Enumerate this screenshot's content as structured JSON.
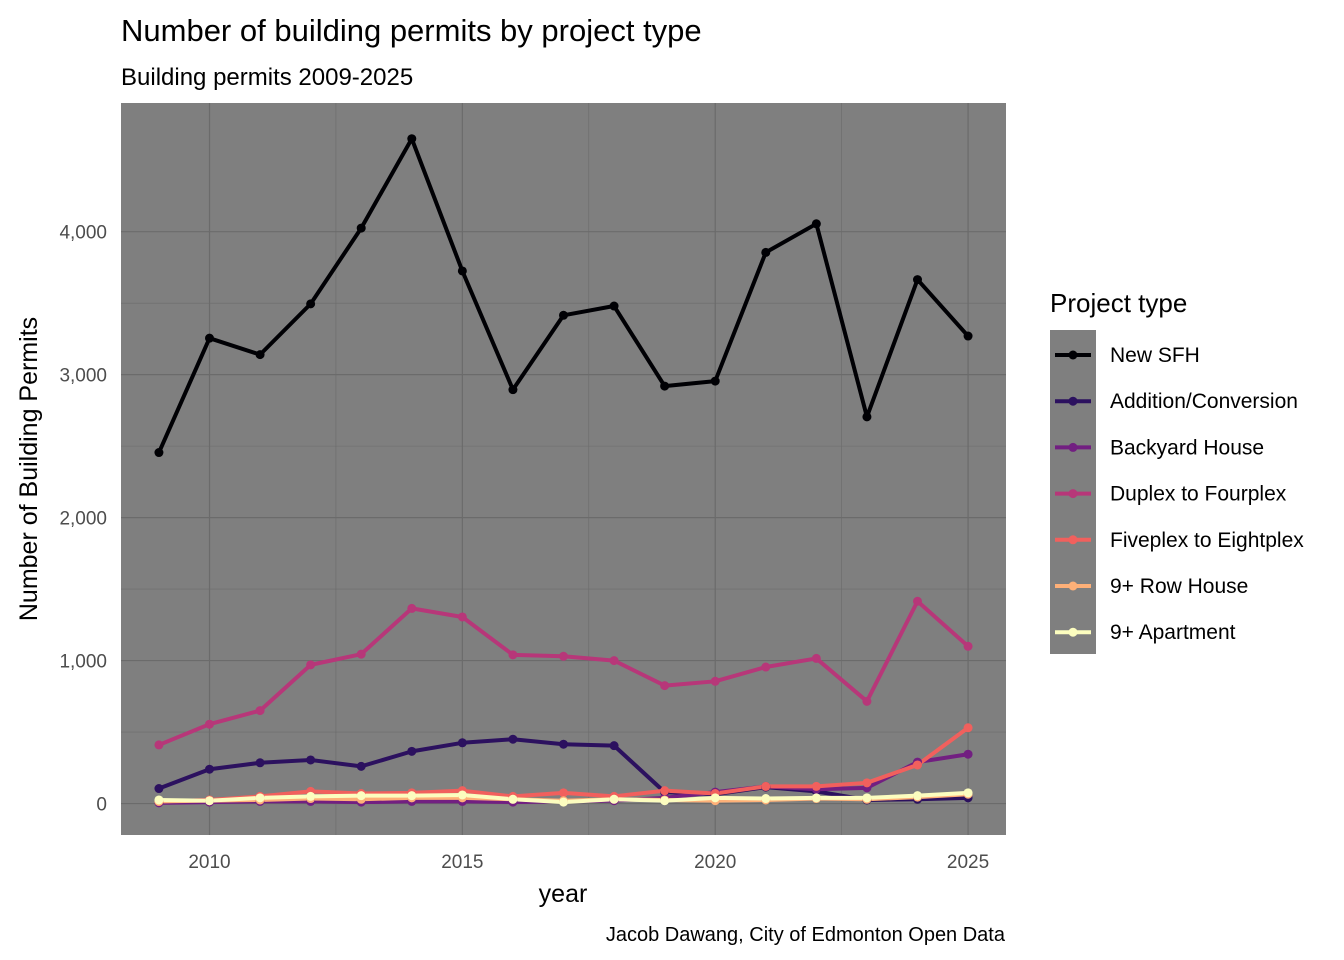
{
  "chart_data": {
    "type": "line",
    "title": "Number of building permits by project type",
    "subtitle": "Building permits 2009-2025",
    "xlabel": "year",
    "ylabel": "Number of Building Permits",
    "caption": "Jacob Dawang, City of Edmonton Open Data",
    "legend_title": "Project type",
    "legend_position": "right",
    "grid": true,
    "panel_background": "#7f7f7f",
    "xlim": [
      2008.25,
      2025.75
    ],
    "ylim": [
      -220,
      4900
    ],
    "x_ticks": [
      2010,
      2015,
      2020,
      2025
    ],
    "x_tick_labels": [
      "2010",
      "2015",
      "2020",
      "2025"
    ],
    "y_ticks": [
      0,
      1000,
      2000,
      3000,
      4000
    ],
    "y_tick_labels": [
      "0",
      "1,000",
      "2,000",
      "3,000",
      "4,000"
    ],
    "x": [
      2009,
      2010,
      2011,
      2012,
      2013,
      2014,
      2015,
      2016,
      2017,
      2018,
      2019,
      2020,
      2021,
      2022,
      2023,
      2024,
      2025
    ],
    "series": [
      {
        "name": "New SFH",
        "color": "#000004",
        "values": [
          2455,
          3255,
          3140,
          3495,
          4025,
          4650,
          3725,
          2895,
          3415,
          3480,
          2920,
          2955,
          3855,
          4055,
          2705,
          3665,
          3270
        ]
      },
      {
        "name": "Addition/Conversion",
        "color": "#2c115f",
        "values": [
          105,
          240,
          285,
          305,
          260,
          365,
          425,
          450,
          415,
          405,
          80,
          65,
          115,
          85,
          25,
          30,
          40
        ]
      },
      {
        "name": "Backyard House",
        "color": "#721f81",
        "values": [
          5,
          10,
          15,
          15,
          10,
          15,
          15,
          10,
          15,
          20,
          40,
          80,
          120,
          100,
          110,
          290,
          345
        ]
      },
      {
        "name": "Duplex to Fourplex",
        "color": "#b73779",
        "values": [
          410,
          555,
          650,
          970,
          1045,
          1365,
          1305,
          1040,
          1030,
          1000,
          825,
          855,
          955,
          1015,
          715,
          1415,
          1100
        ]
      },
      {
        "name": "Fiveplex to Eightplex",
        "color": "#f1605d",
        "values": [
          15,
          25,
          50,
          85,
          70,
          75,
          90,
          50,
          75,
          50,
          90,
          70,
          120,
          120,
          145,
          270,
          530
        ]
      },
      {
        "name": "9+ Row House",
        "color": "#feb078",
        "values": [
          15,
          20,
          25,
          35,
          30,
          40,
          40,
          30,
          20,
          30,
          25,
          20,
          25,
          35,
          30,
          45,
          65
        ]
      },
      {
        "name": "9+ Apartment",
        "color": "#fcfdbf",
        "values": [
          25,
          20,
          40,
          50,
          55,
          55,
          60,
          30,
          10,
          30,
          20,
          40,
          35,
          40,
          40,
          55,
          75
        ]
      }
    ]
  }
}
